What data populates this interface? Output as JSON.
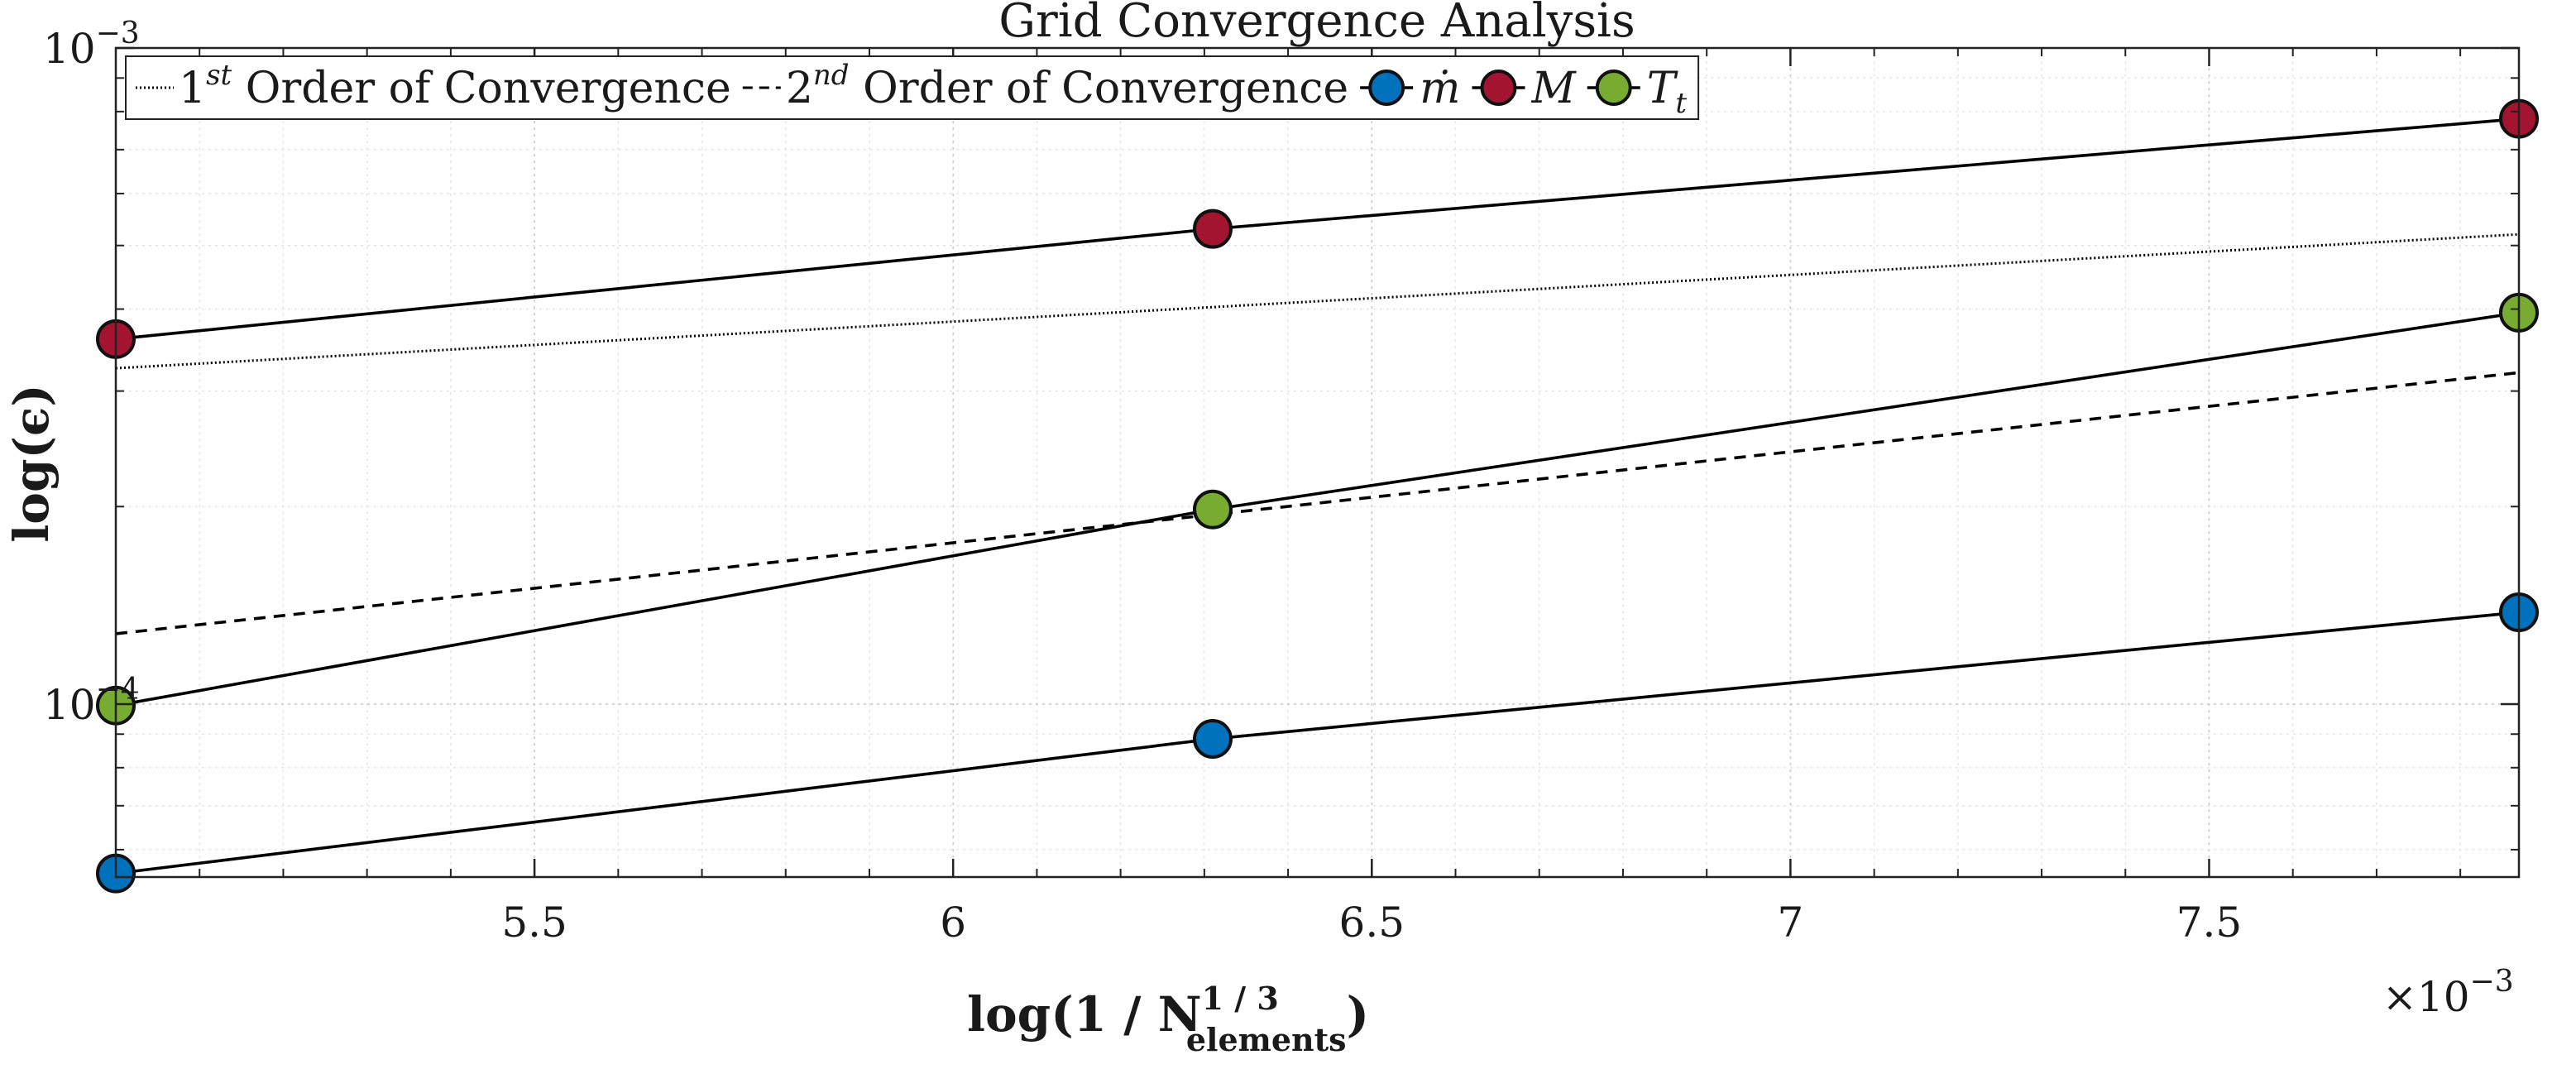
{
  "chart_data": {
    "type": "line",
    "title": "Grid Convergence Analysis",
    "xlabel": {
      "prefix": "log(1 / N",
      "sup": "1 / 3",
      "sub": "elements",
      "suffix": ")"
    },
    "ylabel": "log(ϵ)",
    "x_multiplier": "×10",
    "x_multiplier_exp": "−3",
    "xlim": [
      0.005,
      0.00787
    ],
    "ylim": [
      5.45e-05,
      0.001
    ],
    "yscale": "log",
    "grid": true,
    "x_ticks": [
      {
        "value": 0.0055,
        "label": "5.5"
      },
      {
        "value": 0.006,
        "label": "6"
      },
      {
        "value": 0.0065,
        "label": "6.5"
      },
      {
        "value": 0.007,
        "label": "7"
      },
      {
        "value": 0.0075,
        "label": "7.5"
      }
    ],
    "y_ticks": [
      {
        "value": 0.0001,
        "base": "10",
        "exp": "−4"
      },
      {
        "value": 0.001,
        "base": "10",
        "exp": "−3"
      }
    ],
    "legend_position": "top-left",
    "series": [
      {
        "name": "1st Order of Convergence",
        "label_main": "1",
        "label_sup": "st",
        "label_rest": " Order of Convergence",
        "style": "dotted",
        "color": "#000000",
        "x": [
          0.005,
          0.00787
        ],
        "y": [
          0.000325,
          0.00052
        ]
      },
      {
        "name": "2nd Order of Convergence",
        "label_main": "2",
        "label_sup": "nd",
        "label_rest": " Order of Convergence",
        "style": "dashed",
        "color": "#000000",
        "x": [
          0.005,
          0.00787
        ],
        "y": [
          0.000128,
          0.00032
        ]
      },
      {
        "name": "m-dot",
        "label_main": "ṁ",
        "style": "solid-marker",
        "color": "#0072bd",
        "x": [
          0.005,
          0.00631,
          0.00787
        ],
        "y": [
          5.52e-05,
          8.85e-05,
          0.000138
        ]
      },
      {
        "name": "M",
        "label_main": "M",
        "style": "solid-marker",
        "color": "#a2142f",
        "x": [
          0.005,
          0.00631,
          0.00787
        ],
        "y": [
          0.00036,
          0.00053,
          0.00078
        ]
      },
      {
        "name": "T_t",
        "label_main": "T",
        "label_sub": "t",
        "style": "solid-marker",
        "color": "#77ac30",
        "x": [
          0.005,
          0.00631,
          0.00787
        ],
        "y": [
          9.95e-05,
          0.000198,
          0.000395
        ]
      }
    ]
  }
}
